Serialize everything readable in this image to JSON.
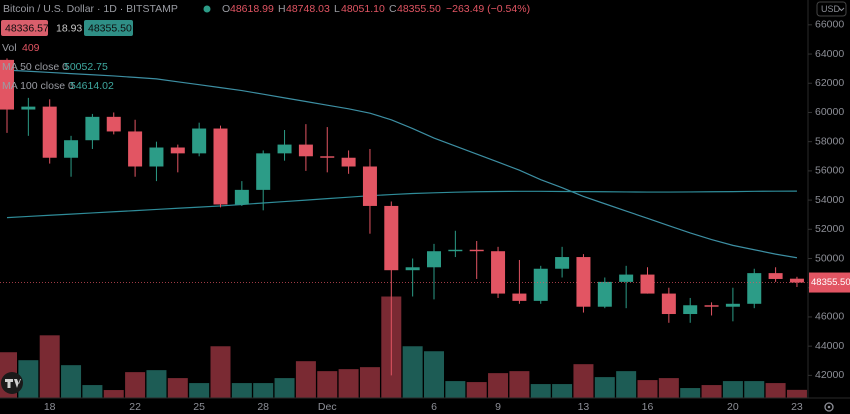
{
  "chart_data": {
    "type": "candlestick",
    "title": "Bitcoin / U.S. Dollar · 1D · BITSTAMP",
    "legend_keys": [
      "O",
      "H",
      "L",
      "C"
    ],
    "legend_values": [
      "48618.99",
      "48748.03",
      "48051.10",
      "48355.50"
    ],
    "change": "−263.49 (−0.54%)",
    "quote": {
      "sell": "48336.57",
      "spread": "18.93",
      "buy": "48355.50"
    },
    "currency": "USD",
    "categories": [
      null,
      null,
      "18",
      null,
      null,
      null,
      "22",
      null,
      null,
      "25",
      null,
      null,
      "28",
      null,
      null,
      "Dec",
      null,
      null,
      null,
      null,
      "6",
      null,
      null,
      "9",
      null,
      null,
      null,
      "13",
      null,
      null,
      "16",
      null,
      null,
      null,
      "20",
      null,
      null,
      "23"
    ],
    "open": [
      63600,
      60200,
      60400,
      56900,
      58100,
      59700,
      58700,
      56300,
      57600,
      57200,
      58900,
      53700,
      54700,
      57200,
      57800,
      57000,
      56900,
      56300,
      53600,
      49200,
      49400,
      50500,
      50600,
      50500,
      47600,
      47100,
      49300,
      50100,
      46700,
      48400,
      48900,
      47600,
      46200,
      46800,
      46700,
      46900,
      49000,
      48618.99
    ],
    "high": [
      63700,
      61000,
      60900,
      58400,
      59900,
      60000,
      59500,
      58000,
      57800,
      59300,
      59100,
      55300,
      57400,
      58800,
      59200,
      59000,
      57400,
      57500,
      53900,
      50000,
      51000,
      51900,
      51200,
      50800,
      49900,
      49500,
      50800,
      50300,
      48700,
      49500,
      49400,
      48000,
      47300,
      47000,
      48000,
      49300,
      49400,
      48748.03
    ],
    "low": [
      58600,
      58400,
      56500,
      55600,
      57500,
      58500,
      55600,
      55300,
      55900,
      57000,
      53500,
      53600,
      53300,
      56700,
      56000,
      55900,
      55800,
      51700,
      42000,
      47400,
      47200,
      50100,
      48600,
      47300,
      46900,
      46900,
      48700,
      46300,
      46600,
      46600,
      47600,
      45600,
      45600,
      46100,
      45700,
      46600,
      48400,
      48051.1
    ],
    "close": [
      60200,
      60400,
      56900,
      58100,
      59700,
      58700,
      56300,
      57600,
      57200,
      58900,
      53700,
      54700,
      57200,
      57800,
      57000,
      56900,
      56300,
      53600,
      49200,
      49400,
      50500,
      50600,
      50500,
      47600,
      47100,
      49300,
      50100,
      46700,
      48400,
      48900,
      47600,
      46200,
      46800,
      46700,
      46900,
      49000,
      48600,
      48355.5
    ],
    "up_color": "#2c9c87",
    "down_color": "#e25563",
    "volume": {
      "name": "Vol",
      "vlim": [
        0,
        20000
      ],
      "up_color": "#1d5c55",
      "down_color": "#7a2a33",
      "values": [
        2300,
        1900,
        3150,
        1650,
        650,
        400,
        1300,
        1400,
        1000,
        750,
        2600,
        750,
        750,
        1000,
        1850,
        1350,
        1450,
        1550,
        5100,
        2600,
        2350,
        850,
        800,
        1250,
        1350,
        700,
        700,
        1700,
        1050,
        1350,
        900,
        1000,
        500,
        650,
        850,
        850,
        750,
        409
      ]
    },
    "series": [
      {
        "name": "MA 50 close 0",
        "color": "#3d8fa3",
        "value_label": "50052.75",
        "values": [
          62900,
          62820,
          62740,
          62660,
          62580,
          62500,
          62400,
          62300,
          62100,
          61900,
          61700,
          61500,
          61250,
          61000,
          60750,
          60500,
          60250,
          59950,
          59500,
          58900,
          58250,
          57700,
          57150,
          56600,
          56050,
          55400,
          54850,
          54250,
          53750,
          53250,
          52750,
          52250,
          51750,
          51300,
          50900,
          50600,
          50300,
          50052.75
        ]
      },
      {
        "name": "MA 100 close 0",
        "color": "#2f8c99",
        "value_label": "54614.02",
        "values": [
          52800,
          52880,
          52960,
          53040,
          53120,
          53200,
          53280,
          53360,
          53440,
          53520,
          53600,
          53700,
          53800,
          53900,
          54000,
          54100,
          54200,
          54300,
          54380,
          54450,
          54500,
          54540,
          54570,
          54590,
          54600,
          54600,
          54590,
          54580,
          54570,
          54560,
          54550,
          54550,
          54560,
          54570,
          54580,
          54600,
          54610,
          54614.02
        ]
      }
    ],
    "ylim": [
      40450,
      67700
    ],
    "yticks": [
      42000,
      44000,
      46000,
      48000,
      50000,
      52000,
      54000,
      56000,
      58000,
      60000,
      62000,
      64000,
      66000
    ],
    "grid": false
  }
}
